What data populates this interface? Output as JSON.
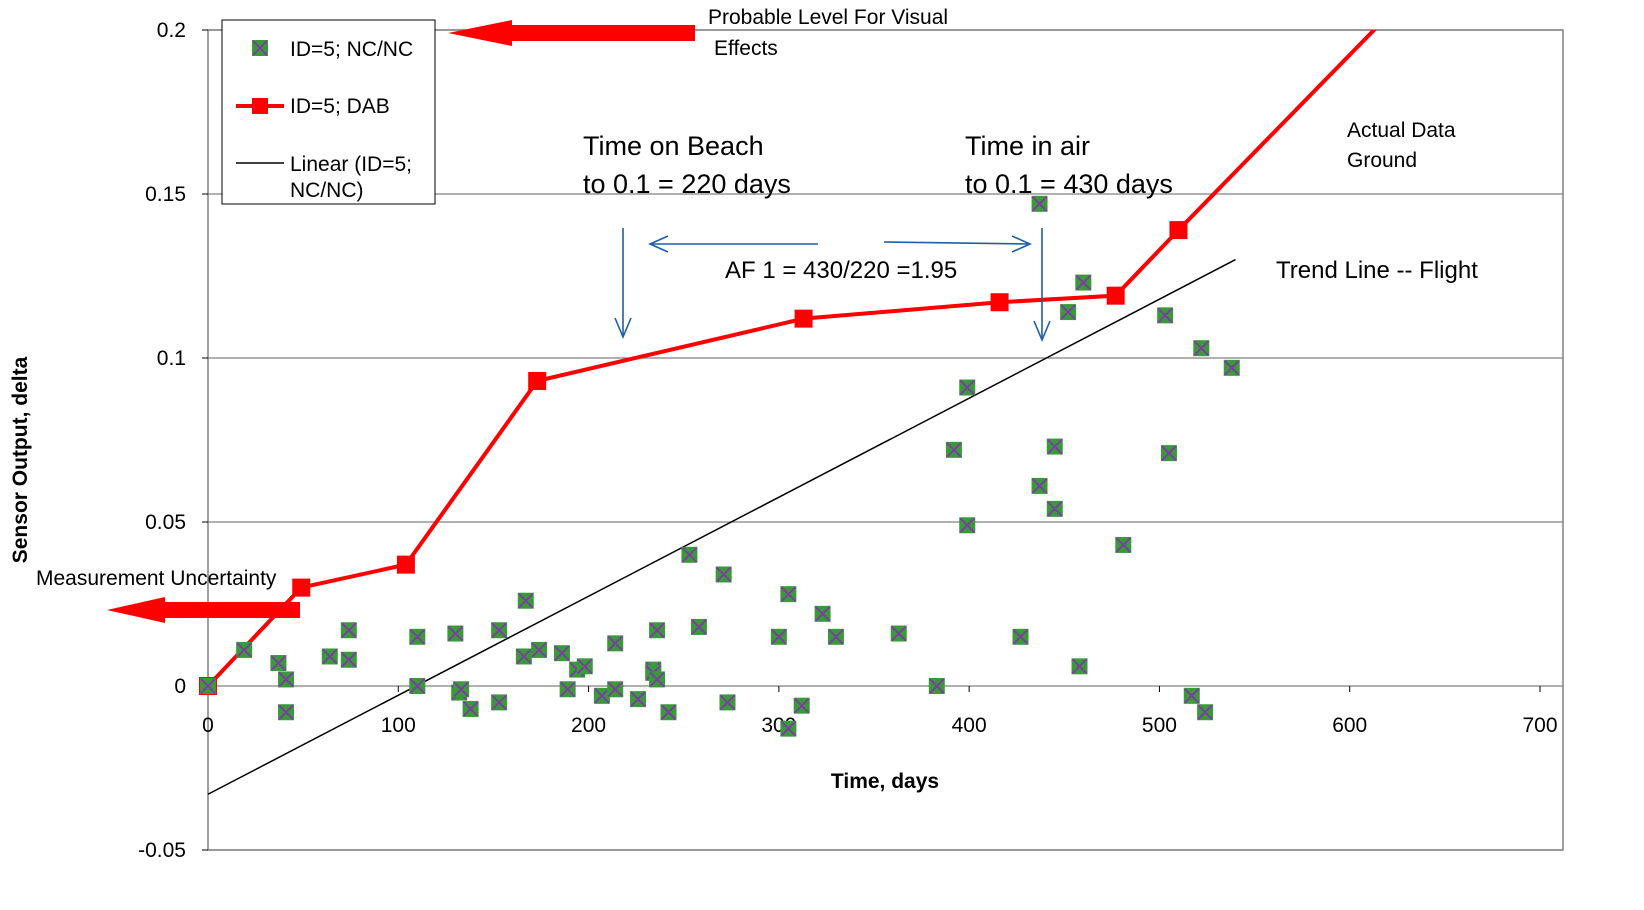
{
  "chart_data": {
    "type": "scatter",
    "xlabel": "Time, days",
    "ylabel": "Sensor Output, delta",
    "xlim": [
      0,
      700
    ],
    "ylim": [
      -0.05,
      0.2
    ],
    "x_ticks": [
      "0",
      "100",
      "200",
      "300",
      "400",
      "500",
      "600",
      "700"
    ],
    "y_ticks": [
      "0.2",
      "0.15",
      "0.1",
      "0.05",
      "0",
      "-0.05"
    ],
    "grid": "horizontal",
    "legend_position": "top-left",
    "colors": {
      "scatter_fill": "#3a9a3a",
      "scatter_x": "#7a3fa0",
      "dab_line": "#ff0000",
      "trend": "#000000",
      "annotation_arrow": "#1f5fa8",
      "red_arrow": "#ff0000",
      "grid": "#808080"
    },
    "series": [
      {
        "name": "ID=5; NC/NC",
        "type": "scatter",
        "points": [
          [
            0,
            0
          ],
          [
            19,
            0.011
          ],
          [
            37,
            0.007
          ],
          [
            41,
            0.002
          ],
          [
            41,
            -0.008
          ],
          [
            64,
            0.009
          ],
          [
            74,
            0.017
          ],
          [
            74,
            0.008
          ],
          [
            110,
            0.015
          ],
          [
            110,
            0
          ],
          [
            130,
            0.016
          ],
          [
            132,
            -0.002
          ],
          [
            133,
            -0.001
          ],
          [
            138,
            -0.007
          ],
          [
            153,
            0.017
          ],
          [
            153,
            -0.005
          ],
          [
            166,
            0.009
          ],
          [
            167,
            0.026
          ],
          [
            174,
            0.011
          ],
          [
            186,
            0.01
          ],
          [
            189,
            -0.001
          ],
          [
            194,
            0.005
          ],
          [
            198,
            0.006
          ],
          [
            207,
            -0.003
          ],
          [
            214,
            -0.001
          ],
          [
            214,
            0.013
          ],
          [
            226,
            -0.004
          ],
          [
            234,
            0.005
          ],
          [
            234,
            0.004
          ],
          [
            236,
            0.017
          ],
          [
            236,
            0.002
          ],
          [
            242,
            -0.008
          ],
          [
            253,
            0.04
          ],
          [
            258,
            0.018
          ],
          [
            271,
            0.034
          ],
          [
            273,
            -0.005
          ],
          [
            300,
            0.015
          ],
          [
            305,
            0.028
          ],
          [
            305,
            -0.013
          ],
          [
            312,
            -0.006
          ],
          [
            323,
            0.022
          ],
          [
            330,
            0.015
          ],
          [
            363,
            0.016
          ],
          [
            383,
            0
          ],
          [
            392,
            0.072
          ],
          [
            399,
            0.091
          ],
          [
            399,
            0.049
          ],
          [
            427,
            0.015
          ],
          [
            437,
            0.147
          ],
          [
            437,
            0.061
          ],
          [
            445,
            0.073
          ],
          [
            445,
            0.054
          ],
          [
            452,
            0.114
          ],
          [
            458,
            0.006
          ],
          [
            460,
            0.123
          ],
          [
            481,
            0.043
          ],
          [
            503,
            0.113
          ],
          [
            505,
            0.071
          ],
          [
            517,
            -0.003
          ],
          [
            522,
            0.103
          ],
          [
            524,
            -0.008
          ],
          [
            538,
            0.097
          ]
        ]
      },
      {
        "name": "ID=5; DAB",
        "type": "line",
        "points": [
          [
            0,
            0
          ],
          [
            49,
            0.03
          ],
          [
            104,
            0.037
          ],
          [
            173,
            0.093
          ],
          [
            313,
            0.112
          ],
          [
            416,
            0.117
          ],
          [
            477,
            0.119
          ],
          [
            510,
            0.139
          ],
          [
            633,
            0.212
          ]
        ]
      },
      {
        "name": "Linear (ID=5; NC/NC)",
        "type": "line",
        "points": [
          [
            0,
            -0.033
          ],
          [
            540,
            0.13
          ]
        ]
      }
    ]
  },
  "legend": {
    "items": [
      "ID=5; NC/NC",
      "ID=5; DAB",
      "Linear (ID=5;",
      "NC/NC)"
    ]
  },
  "annotations": {
    "probable_level_line1": "Probable Level For Visual",
    "probable_level_line2": "Effects",
    "measurement_uncertainty": "Measurement Uncertainty",
    "beach_line1": "Time on Beach",
    "beach_line2": "to 0.1 = 220 days",
    "air_line1": "Time in air",
    "air_line2": "to 0.1 = 430 days",
    "af_label": "AF 1 = 430/220 =1.95",
    "actual_line1": "Actual Data",
    "actual_line2": "Ground",
    "trend_label": "Trend Line -- Flight"
  }
}
